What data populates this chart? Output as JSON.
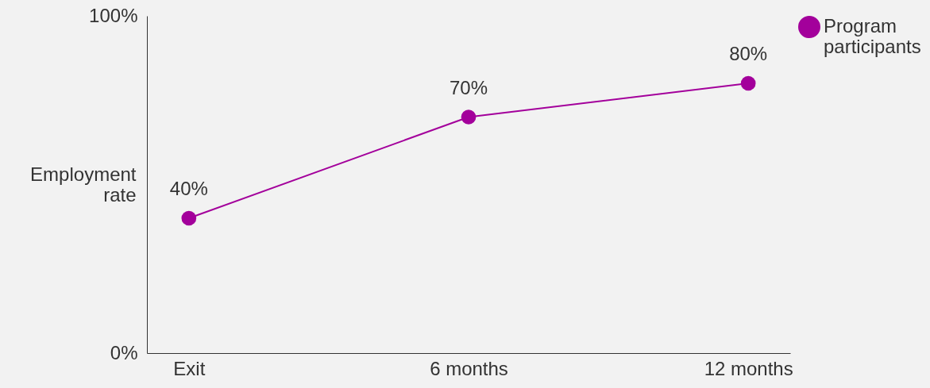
{
  "chart_data": {
    "type": "line",
    "ylabel": "Employment rate",
    "categories": [
      "Exit",
      "6 months",
      "12 months"
    ],
    "series": [
      {
        "name": "Program participants",
        "color": "#a3009b",
        "values": [
          40,
          70,
          80
        ]
      }
    ],
    "ylim": [
      0,
      100
    ],
    "yticks": [
      {
        "value": 0,
        "label": "0%"
      },
      {
        "value": 100,
        "label": "100%"
      }
    ],
    "value_labels": [
      "40%",
      "70%",
      "80%"
    ],
    "grid": false,
    "legend": "right",
    "marker": "circle",
    "line_style": "solid"
  }
}
